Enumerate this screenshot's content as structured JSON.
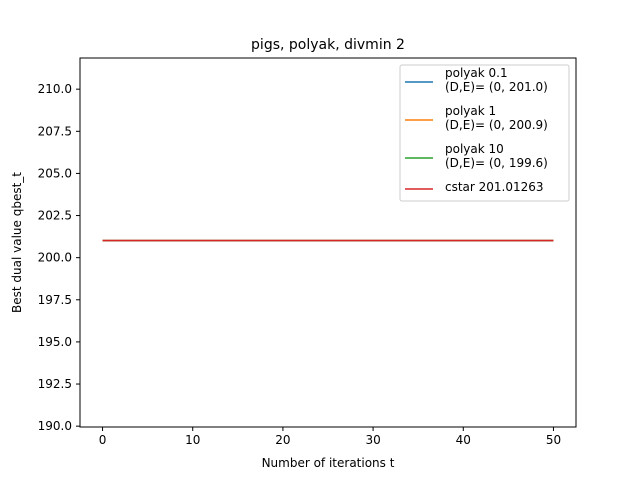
{
  "chart_data": {
    "type": "line",
    "title": "pigs, polyak, divmin 2",
    "xlabel": "Number of iterations t",
    "ylabel": "Best dual value qbest_t",
    "xlim": [
      -2.5,
      52.5
    ],
    "ylim": [
      189.95,
      211.85
    ],
    "xticks": [
      0,
      10,
      20,
      30,
      40,
      50
    ],
    "xtick_labels": [
      "0",
      "10",
      "20",
      "30",
      "40",
      "50"
    ],
    "yticks": [
      190.0,
      192.5,
      195.0,
      197.5,
      200.0,
      202.5,
      205.0,
      207.5,
      210.0
    ],
    "ytick_labels": [
      "190.0",
      "192.5",
      "195.0",
      "197.5",
      "200.0",
      "202.5",
      "205.0",
      "207.5",
      "210.0"
    ],
    "grid": false,
    "legend_position": "top-right",
    "series": [
      {
        "name": "polyak 0.1",
        "detail": "(D,E)= (0, 201.0)",
        "color": "#1f77b4",
        "x": [
          0,
          50
        ],
        "values": [
          201.01,
          201.01
        ]
      },
      {
        "name": "polyak 1",
        "detail": "(D,E)= (0, 200.9)",
        "color": "#ff7f0e",
        "x": [
          0,
          50
        ],
        "values": [
          201.01,
          201.01
        ]
      },
      {
        "name": "polyak 10",
        "detail": "(D,E)= (0, 199.6)",
        "color": "#2ca02c",
        "x": [
          0,
          50
        ],
        "values": [
          201.01,
          201.01
        ]
      },
      {
        "name": "cstar 201.01263",
        "detail": "",
        "color": "#d62728",
        "x": [
          0,
          50
        ],
        "values": [
          201.01263,
          201.01263
        ]
      }
    ]
  }
}
